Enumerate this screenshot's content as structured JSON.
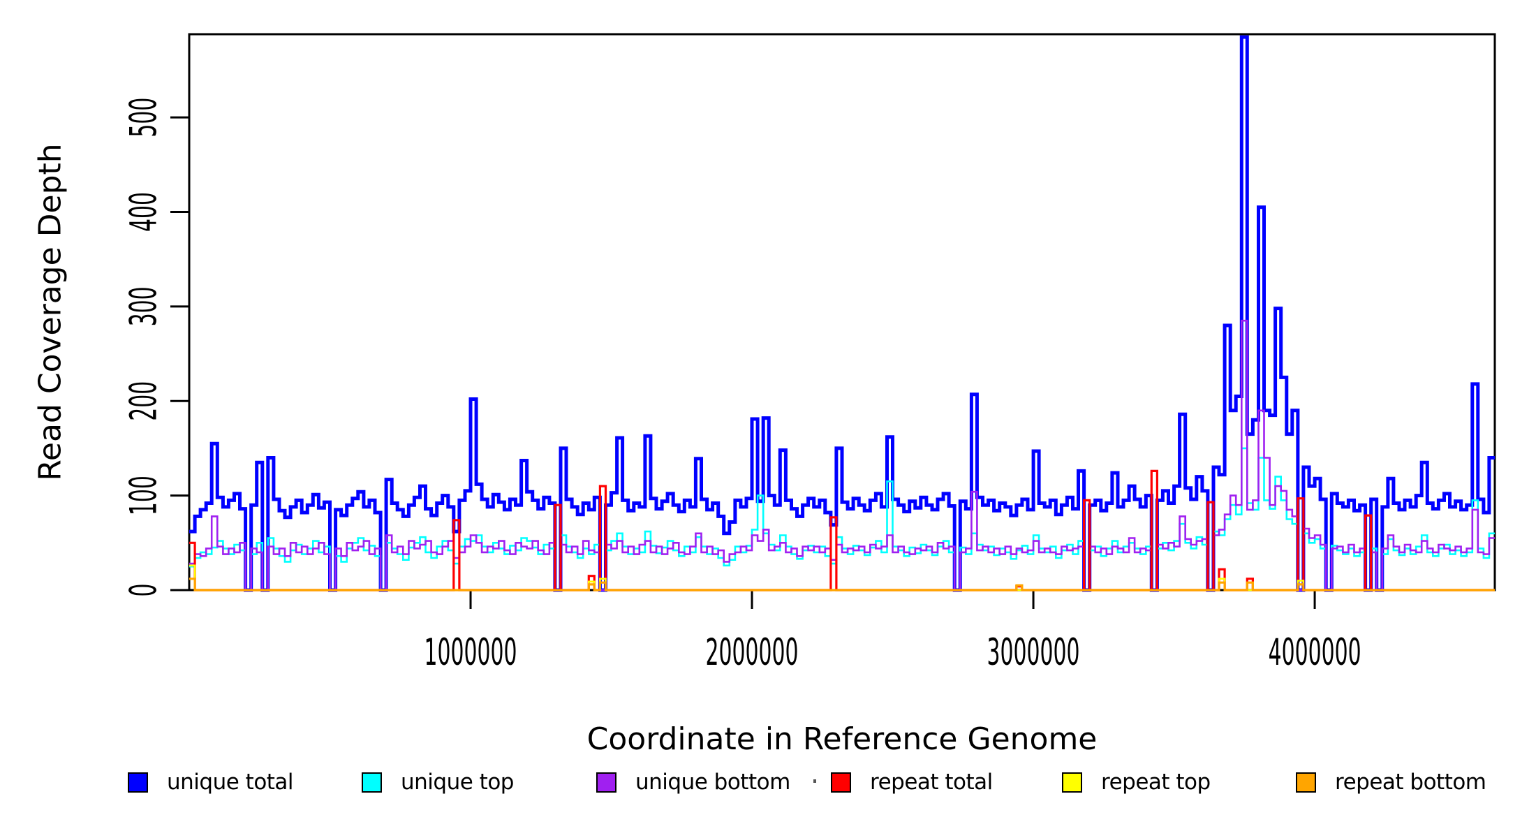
{
  "chart_data": {
    "type": "line",
    "subtype": "step-coverage-plot",
    "xlabel": "Coordinate in Reference Genome",
    "ylabel": "Read Coverage Depth",
    "xlim": [
      0,
      4640000
    ],
    "ylim": [
      0,
      588
    ],
    "x_ticks": [
      1000000,
      2000000,
      3000000,
      4000000
    ],
    "x_tick_labels": [
      "1000000",
      "2000000",
      "3000000",
      "4000000"
    ],
    "y_ticks": [
      0,
      100,
      200,
      300,
      400,
      500
    ],
    "y_tick_labels": [
      "0",
      "100",
      "200",
      "300",
      "400",
      "500"
    ],
    "grid": false,
    "legend_position": "bottom",
    "bin_size": 20000,
    "n_bins": 232,
    "series": [
      {
        "name": "unique total",
        "color": "#0000FF",
        "line_width": 5,
        "values": [
          62,
          78,
          85,
          92,
          155,
          98,
          88,
          95,
          102,
          86,
          0,
          90,
          135,
          0,
          140,
          96,
          84,
          77,
          88,
          95,
          82,
          90,
          101,
          87,
          93,
          0,
          85,
          79,
          90,
          97,
          104,
          88,
          95,
          82,
          0,
          117,
          92,
          85,
          78,
          90,
          98,
          110,
          86,
          79,
          92,
          100,
          88,
          62,
          95,
          105,
          202,
          112,
          96,
          88,
          101,
          93,
          85,
          96,
          90,
          137,
          104,
          95,
          86,
          98,
          92,
          0,
          150,
          96,
          88,
          80,
          92,
          85,
          98,
          0,
          90,
          103,
          161,
          95,
          84,
          92,
          88,
          163,
          97,
          86,
          94,
          102,
          90,
          83,
          95,
          88,
          139,
          96,
          85,
          92,
          78,
          60,
          72,
          95,
          88,
          97,
          181,
          94,
          182,
          100,
          90,
          148,
          95,
          86,
          78,
          90,
          97,
          88,
          95,
          82,
          69,
          150,
          93,
          86,
          97,
          90,
          84,
          95,
          102,
          88,
          162,
          96,
          90,
          83,
          94,
          87,
          98,
          90,
          85,
          96,
          102,
          89,
          0,
          94,
          86,
          207,
          98,
          90,
          95,
          84,
          92,
          88,
          79,
          90,
          96,
          85,
          147,
          92,
          88,
          95,
          80,
          90,
          98,
          86,
          126,
          0,
          90,
          95,
          84,
          92,
          124,
          88,
          95,
          110,
          96,
          88,
          100,
          0,
          95,
          105,
          92,
          110,
          186,
          108,
          96,
          120,
          105,
          0,
          130,
          122,
          280,
          190,
          205,
          585,
          165,
          180,
          405,
          190,
          185,
          298,
          225,
          165,
          190,
          0,
          130,
          110,
          118,
          96,
          0,
          102,
          92,
          88,
          95,
          84,
          90,
          0,
          96,
          0,
          88,
          118,
          92,
          85,
          95,
          88,
          100,
          135,
          92,
          86,
          95,
          102,
          88,
          94,
          85,
          90,
          218,
          96,
          82,
          140
        ]
      },
      {
        "name": "unique top",
        "color": "#00FFFF",
        "line_width": 2.6,
        "values": [
          25,
          34,
          40,
          38,
          45,
          52,
          44,
          38,
          48,
          42,
          0,
          38,
          50,
          0,
          55,
          44,
          36,
          30,
          42,
          48,
          38,
          44,
          52,
          40,
          46,
          0,
          36,
          30,
          44,
          50,
          55,
          42,
          47,
          36,
          0,
          50,
          44,
          38,
          32,
          45,
          50,
          56,
          40,
          34,
          46,
          52,
          42,
          28,
          46,
          54,
          52,
          58,
          46,
          40,
          50,
          44,
          38,
          47,
          42,
          55,
          52,
          45,
          38,
          48,
          44,
          0,
          58,
          46,
          40,
          34,
          44,
          38,
          48,
          0,
          42,
          52,
          60,
          46,
          38,
          44,
          40,
          62,
          47,
          39,
          45,
          52,
          42,
          36,
          46,
          40,
          56,
          46,
          38,
          44,
          34,
          26,
          32,
          46,
          40,
          47,
          64,
          100,
          60,
          48,
          42,
          58,
          46,
          38,
          33,
          42,
          47,
          40,
          46,
          36,
          28,
          56,
          44,
          38,
          47,
          42,
          37,
          45,
          52,
          40,
          115,
          46,
          42,
          36,
          45,
          39,
          48,
          42,
          37,
          46,
          52,
          40,
          0,
          45,
          38,
          60,
          48,
          42,
          46,
          37,
          44,
          40,
          33,
          42,
          47,
          38,
          58,
          44,
          40,
          46,
          34,
          42,
          48,
          38,
          52,
          0,
          42,
          46,
          36,
          44,
          52,
          40,
          46,
          50,
          44,
          38,
          46,
          0,
          44,
          50,
          42,
          52,
          70,
          50,
          44,
          56,
          48,
          0,
          62,
          58,
          75,
          90,
          80,
          150,
          92,
          85,
          140,
          95,
          86,
          120,
          95,
          75,
          70,
          0,
          60,
          50,
          54,
          44,
          0,
          47,
          42,
          38,
          44,
          36,
          40,
          0,
          44,
          0,
          38,
          54,
          42,
          37,
          44,
          38,
          46,
          58,
          40,
          36,
          44,
          48,
          38,
          42,
          36,
          40,
          95,
          44,
          34,
          60
        ]
      },
      {
        "name": "unique bottom",
        "color": "#A020F0",
        "line_width": 2.6,
        "values": [
          28,
          38,
          36,
          44,
          78,
          46,
          38,
          44,
          40,
          50,
          0,
          44,
          40,
          0,
          46,
          38,
          44,
          36,
          50,
          40,
          46,
          38,
          44,
          50,
          38,
          0,
          44,
          36,
          50,
          42,
          46,
          52,
          38,
          44,
          0,
          58,
          40,
          46,
          38,
          52,
          44,
          48,
          52,
          40,
          38,
          46,
          52,
          34,
          40,
          46,
          58,
          50,
          40,
          46,
          44,
          52,
          42,
          38,
          50,
          46,
          44,
          52,
          42,
          38,
          50,
          0,
          48,
          40,
          46,
          38,
          52,
          42,
          40,
          0,
          48,
          44,
          52,
          40,
          46,
          38,
          48,
          52,
          40,
          46,
          38,
          44,
          50,
          40,
          38,
          46,
          60,
          40,
          46,
          38,
          42,
          30,
          38,
          40,
          46,
          42,
          58,
          52,
          64,
          42,
          46,
          50,
          40,
          44,
          36,
          46,
          42,
          46,
          40,
          44,
          32,
          48,
          40,
          44,
          42,
          46,
          40,
          48,
          44,
          46,
          58,
          40,
          46,
          40,
          38,
          44,
          42,
          46,
          40,
          50,
          44,
          46,
          0,
          40,
          44,
          104,
          42,
          46,
          40,
          44,
          38,
          46,
          38,
          44,
          40,
          42,
          52,
          40,
          44,
          40,
          38,
          46,
          42,
          44,
          46,
          0,
          46,
          40,
          44,
          38,
          46,
          44,
          40,
          55,
          40,
          44,
          42,
          0,
          48,
          44,
          50,
          46,
          78,
          54,
          48,
          52,
          54,
          0,
          58,
          64,
          80,
          100,
          90,
          285,
          85,
          95,
          190,
          140,
          90,
          110,
          105,
          85,
          78,
          0,
          65,
          55,
          58,
          48,
          0,
          44,
          46,
          40,
          48,
          40,
          44,
          0,
          40,
          0,
          44,
          58,
          46,
          40,
          48,
          42,
          40,
          52,
          44,
          40,
          48,
          44,
          42,
          46,
          40,
          44,
          85,
          40,
          38,
          55
        ]
      },
      {
        "name": "repeat total",
        "color": "#FF0000",
        "line_width": 3.2,
        "default": 0,
        "spikes": {
          "0": 50,
          "47": 74,
          "65": 90,
          "71": 15,
          "73": 110,
          "114": 77,
          "147": 4,
          "159": 95,
          "171": 126,
          "181": 93,
          "183": 22,
          "188": 12,
          "197": 97,
          "209": 79
        }
      },
      {
        "name": "repeat top",
        "color": "#FFFF00",
        "line_width": 2.6,
        "default": 0,
        "spikes": {
          "0": 26,
          "71": 9,
          "73": 12,
          "183": 12,
          "197": 10
        }
      },
      {
        "name": "repeat bottom",
        "color": "#FFA500",
        "line_width": 3.2,
        "default": 0,
        "spikes": {
          "0": 12,
          "71": 6,
          "73": 8,
          "147": 5,
          "183": 8,
          "188": 8,
          "197": 6
        }
      }
    ]
  },
  "legend": {
    "items": [
      {
        "label": "unique total",
        "color": "#0000FF"
      },
      {
        "label": "unique top",
        "color": "#00FFFF"
      },
      {
        "label": "unique bottom",
        "color": "#A020F0"
      },
      {
        "label": "repeat total",
        "color": "#FF0000"
      },
      {
        "label": "repeat top",
        "color": "#FFFF00"
      },
      {
        "label": "repeat bottom",
        "color": "#FFA500"
      }
    ]
  },
  "titles": {
    "x_axis": "Coordinate in Reference Genome",
    "y_axis": "Read Coverage Depth"
  },
  "style_colors": {
    "frame": "#000000",
    "background": "#ffffff",
    "text": "#000000"
  }
}
